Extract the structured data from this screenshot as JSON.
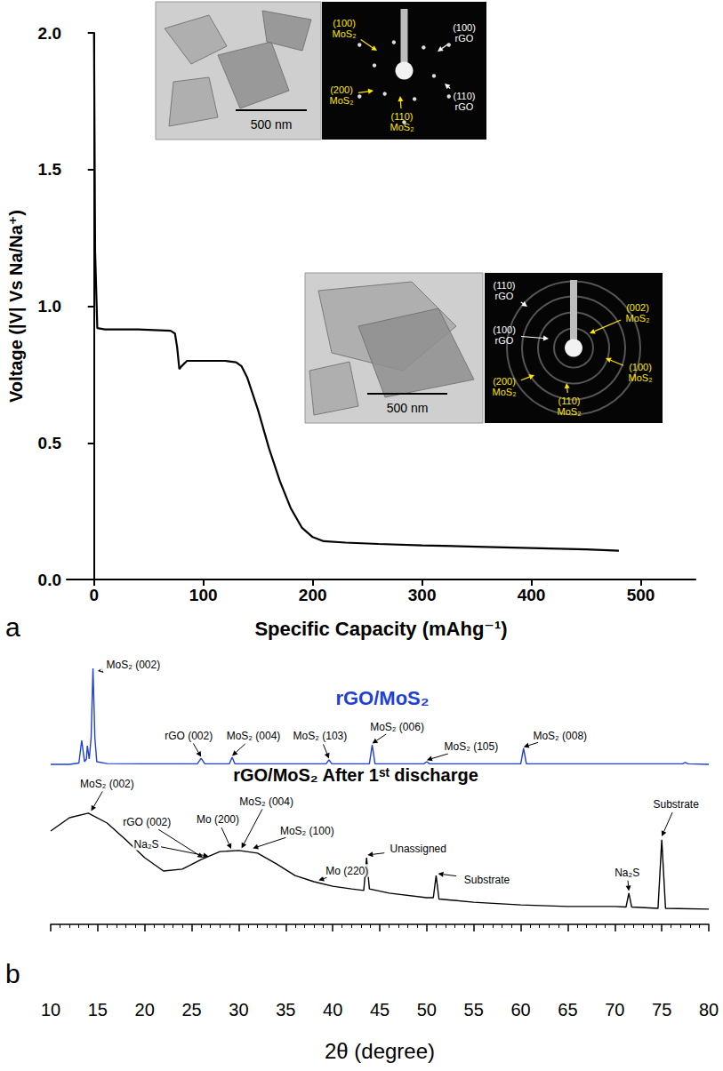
{
  "chart_data": [
    {
      "type": "line",
      "panel_label": "a",
      "x_label": "Specific Capacity (mAhg⁻¹)",
      "y_label": "Voltage (|V| Vs Na/Na⁺)",
      "x": [
        0,
        1,
        3,
        10,
        40,
        70,
        74,
        76,
        78,
        80,
        85,
        100,
        120,
        130,
        135,
        140,
        150,
        160,
        170,
        180,
        190,
        200,
        210,
        230,
        260,
        300,
        350,
        400,
        450,
        480
      ],
      "values": [
        2.0,
        1.2,
        0.92,
        0.915,
        0.915,
        0.91,
        0.9,
        0.85,
        0.77,
        0.78,
        0.8,
        0.8,
        0.8,
        0.795,
        0.78,
        0.74,
        0.62,
        0.48,
        0.36,
        0.26,
        0.19,
        0.155,
        0.14,
        0.135,
        0.13,
        0.125,
        0.12,
        0.115,
        0.11,
        0.105
      ],
      "color": "#000000",
      "xlim": [
        -25,
        550
      ],
      "xticks": [
        0,
        100,
        200,
        300,
        400,
        500
      ],
      "ylim": [
        0,
        2
      ],
      "yticks": [
        {
          "value": 0,
          "label": "0.0"
        },
        0.5,
        {
          "value": 1,
          "label": "1.0"
        },
        1.5,
        {
          "value": 2,
          "label": "2.0"
        }
      ],
      "grid": false,
      "insets": [
        {
          "scale_bar": "500 nm",
          "saed_labels": [
            {
              "hkl": "(100)",
              "phase": "MoS₂",
              "color": "#ffe600"
            },
            {
              "hkl": "(100)",
              "phase": "rGO",
              "color": "#ffffff"
            },
            {
              "hkl": "(200)",
              "phase": "MoS₂",
              "color": "#ffe600"
            },
            {
              "hkl": "(110)",
              "phase": "MoS₂",
              "color": "#ffe600"
            },
            {
              "hkl": "(110)",
              "phase": "rGO",
              "color": "#ffffff"
            }
          ]
        },
        {
          "scale_bar": "500 nm",
          "saed_labels": [
            {
              "hkl": "(110)",
              "phase": "rGO",
              "color": "#ffffff"
            },
            {
              "hkl": "(100)",
              "phase": "rGO",
              "color": "#ffffff"
            },
            {
              "hkl": "(002)",
              "phase": "MoS₂",
              "color": "#ffe600"
            },
            {
              "hkl": "(100)",
              "phase": "MoS₂",
              "color": "#ffe600"
            },
            {
              "hkl": "(200)",
              "phase": "MoS₂",
              "color": "#ffe600"
            },
            {
              "hkl": "(110)",
              "phase": "MoS₂",
              "color": "#ffe600"
            }
          ]
        }
      ]
    },
    {
      "type": "line",
      "panel_label": "b",
      "x_label": "2θ (degree)",
      "xlim": [
        10,
        80
      ],
      "xticks": [
        10,
        15,
        20,
        25,
        30,
        35,
        40,
        45,
        50,
        55,
        60,
        65,
        70,
        75,
        80
      ],
      "ylim": [
        -26,
        100
      ],
      "yticks": [],
      "tick_labels": "x",
      "grid": false,
      "series": [
        {
          "name": "rGO/MoS₂",
          "color": "#1f3fd6",
          "x": [
            10,
            12,
            13.0,
            13.3,
            13.6,
            13.8,
            13.9,
            14.1,
            14.3,
            14.5,
            14.7,
            14.9,
            16,
            20,
            25.6,
            26,
            26.4,
            29,
            29.3,
            29.6,
            39.3,
            39.6,
            39.9,
            43.9,
            44.2,
            44.5,
            49.7,
            50,
            50.3,
            60,
            60.3,
            60.6,
            77.2,
            77.5,
            77.8,
            80
          ],
          "values": [
            60,
            60,
            60.5,
            69,
            61,
            62,
            67,
            62,
            70,
            96,
            70,
            61,
            60.3,
            60.2,
            60.2,
            62.3,
            60.2,
            60.2,
            62.7,
            60.2,
            60.2,
            61.7,
            60.2,
            60.2,
            67.3,
            60.2,
            60.2,
            61,
            60.2,
            60.2,
            66,
            60.2,
            60.2,
            60.7,
            60.2,
            60
          ]
        },
        {
          "name": "rGO/MoS₂ After 1ˢᵗ discharge",
          "color": "#000000",
          "x": [
            10,
            12,
            14,
            16,
            18,
            20,
            22,
            24,
            26,
            28,
            30,
            32,
            34,
            36,
            38,
            40,
            42,
            43.3,
            43.6,
            43.9,
            46,
            50,
            50.7,
            51,
            51.3,
            55,
            60,
            65,
            70,
            71.2,
            71.5,
            71.8,
            74.6,
            75,
            75.4,
            80
          ],
          "values": [
            35,
            40,
            41.7,
            38,
            31.7,
            25,
            20,
            20.7,
            24.3,
            27.3,
            27.7,
            26.7,
            22.7,
            18.3,
            16,
            14.3,
            13.3,
            12.7,
            25,
            13.3,
            11.7,
            10,
            10,
            18.3,
            9.5,
            8.3,
            7.3,
            6.7,
            6.7,
            6.5,
            11.7,
            6.5,
            6,
            31.7,
            6,
            5.7
          ]
        }
      ],
      "annotations": [
        {
          "text": "MoS₂ (002)",
          "x": 15,
          "y": 95
        },
        {
          "text": "rGO (002)",
          "x": 26,
          "y": 62.8
        },
        {
          "text": "MoS₂ (004)",
          "x": 29.3,
          "y": 63.2
        },
        {
          "text": "MoS₂ (103)",
          "x": 39.6,
          "y": 62.2
        },
        {
          "text": "MoS₂ (006)",
          "x": 44.2,
          "y": 67.8
        },
        {
          "text": "MoS₂ (105)",
          "x": 50,
          "y": 61.6
        },
        {
          "text": "MoS₂ (008)",
          "x": 60.3,
          "y": 66.5
        },
        {
          "text": "MoS₂ (002)",
          "x": 14.3,
          "y": 42.5
        },
        {
          "text": "rGO (002)",
          "x": 26.2,
          "y": 25
        },
        {
          "text": "Na₂S",
          "x": 26.8,
          "y": 25.5
        },
        {
          "text": "Mo (200)",
          "x": 29.2,
          "y": 28.3
        },
        {
          "text": "MoS₂ (004)",
          "x": 30.3,
          "y": 28.5
        },
        {
          "text": "MoS₂ (100)",
          "x": 31.5,
          "y": 28.5
        },
        {
          "text": "Mo (220)",
          "x": 38.5,
          "y": 16.5
        },
        {
          "text": "Unassigned",
          "x": 43.7,
          "y": 26
        },
        {
          "text": "Substrate",
          "x": 51.2,
          "y": 19
        },
        {
          "text": "Na₂S",
          "x": 71.5,
          "y": 12.5
        },
        {
          "text": "Substrate",
          "x": 75,
          "y": 33
        }
      ]
    }
  ]
}
